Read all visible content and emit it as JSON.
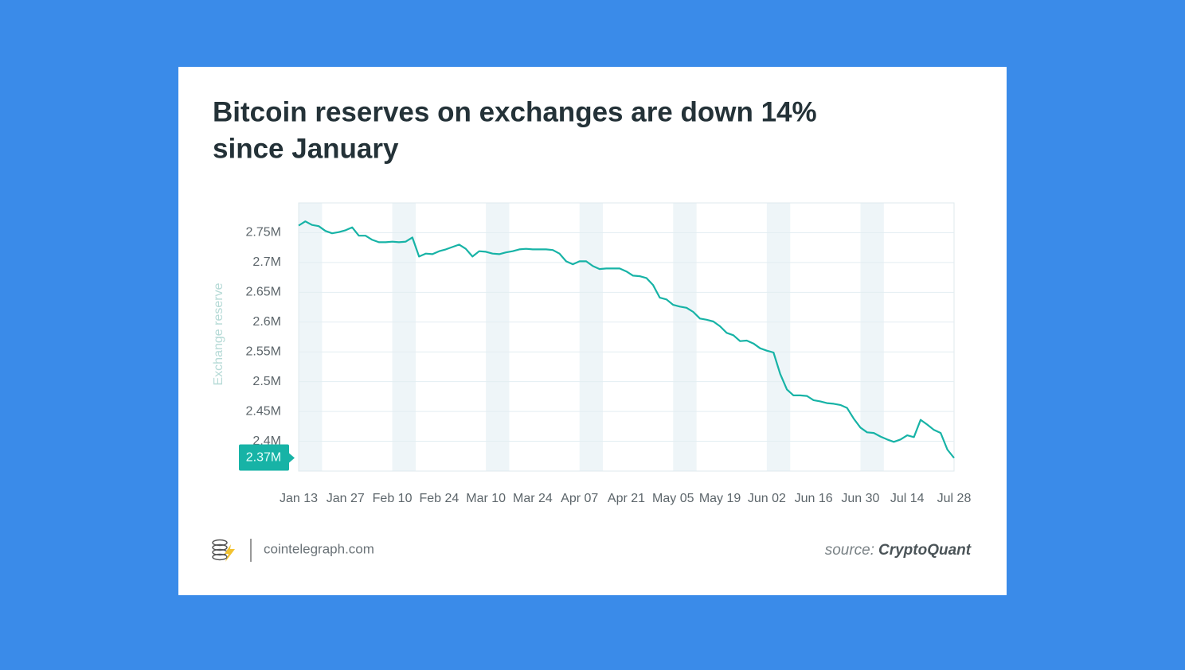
{
  "chart_data": {
    "type": "line",
    "title": "Bitcoin reserves on exchanges are down 14%",
    "title_line2": "since January",
    "y_axis_label": "Exchange reserve",
    "categories": [
      "Jan 13",
      null,
      null,
      null,
      null,
      null,
      null,
      "Jan 27",
      null,
      null,
      null,
      null,
      null,
      null,
      "Feb 10",
      null,
      null,
      null,
      null,
      null,
      null,
      "Feb 24",
      null,
      null,
      null,
      null,
      null,
      null,
      "Mar 10",
      null,
      null,
      null,
      null,
      null,
      null,
      "Mar 24",
      null,
      null,
      null,
      null,
      null,
      null,
      "Apr 07",
      null,
      null,
      null,
      null,
      null,
      null,
      "Apr 21",
      null,
      null,
      null,
      null,
      null,
      null,
      "May 05",
      null,
      null,
      null,
      null,
      null,
      null,
      "May 19",
      null,
      null,
      null,
      null,
      null,
      null,
      "Jun 02",
      null,
      null,
      null,
      null,
      null,
      null,
      "Jun 16",
      null,
      null,
      null,
      null,
      null,
      null,
      "Jun 30",
      null,
      null,
      null,
      null,
      null,
      null,
      "Jul 14",
      null,
      null,
      null,
      null,
      null,
      null,
      "Jul 28"
    ],
    "series": [
      {
        "name": "Exchange reserve",
        "color": "#17b3a6",
        "values": [
          2762000,
          2769000,
          2763000,
          2761000,
          2753000,
          2749000,
          2751000,
          2754000,
          2759000,
          2745000,
          2745000,
          2738000,
          2734000,
          2734000,
          2735000,
          2734000,
          2735000,
          2742000,
          2710000,
          2715000,
          2714000,
          2719000,
          2722000,
          2726000,
          2730000,
          2723000,
          2710000,
          2719000,
          2718000,
          2715000,
          2714000,
          2717000,
          2719000,
          2722000,
          2723000,
          2722000,
          2722000,
          2722000,
          2721000,
          2715000,
          2702000,
          2697000,
          2702000,
          2702000,
          2694000,
          2689000,
          2690000,
          2690000,
          2690000,
          2685000,
          2678000,
          2677000,
          2674000,
          2662000,
          2641000,
          2638000,
          2629000,
          2626000,
          2624000,
          2617000,
          2606000,
          2604000,
          2601000,
          2593000,
          2582000,
          2578000,
          2568000,
          2569000,
          2564000,
          2556000,
          2552000,
          2549000,
          2513000,
          2487000,
          2477000,
          2477000,
          2476000,
          2469000,
          2467000,
          2464000,
          2463000,
          2461000,
          2456000,
          2438000,
          2423000,
          2415000,
          2414000,
          2408000,
          2403000,
          2399000,
          2403000,
          2410000,
          2407000,
          2436000,
          2428000,
          2419000,
          2414000,
          2386000,
          2372000
        ],
        "value_labels": [
          null,
          null,
          null,
          null,
          null,
          null,
          null,
          null,
          null,
          null,
          null,
          null,
          null,
          null,
          null,
          null,
          null,
          null,
          null,
          null,
          null,
          null,
          null,
          null,
          null,
          null,
          null,
          null,
          null,
          null,
          null,
          null,
          null,
          null,
          null,
          null,
          null,
          null,
          null,
          null,
          null,
          null,
          null,
          null,
          null,
          null,
          null,
          null,
          null,
          null,
          null,
          null,
          null,
          null,
          null,
          null,
          null,
          null,
          null,
          null,
          null,
          null,
          null,
          null,
          null,
          null,
          null,
          null,
          null,
          null,
          null,
          null,
          null,
          null,
          null,
          null,
          null,
          null,
          null,
          null,
          null,
          null,
          null,
          null,
          null,
          null,
          null,
          null,
          null,
          null,
          null,
          null,
          null,
          null,
          null,
          null,
          null,
          null,
          "2.37M"
        ]
      }
    ],
    "ylim": [
      2350000,
      2800000
    ],
    "yticks": [
      {
        "value": 2400000,
        "label": "2.4M"
      },
      {
        "value": 2450000,
        "label": "2.45M"
      },
      {
        "value": 2500000,
        "label": "2.5M"
      },
      {
        "value": 2550000,
        "label": "2.55M"
      },
      {
        "value": 2600000,
        "label": "2.6M"
      },
      {
        "value": 2650000,
        "label": "2.65M"
      },
      {
        "value": 2700000,
        "label": "2.7M"
      },
      {
        "value": 2750000,
        "label": "2.75M"
      }
    ],
    "grid": true,
    "site": "cointelegraph.com",
    "source_prefix": "source:",
    "source": "CryptoQuant"
  }
}
